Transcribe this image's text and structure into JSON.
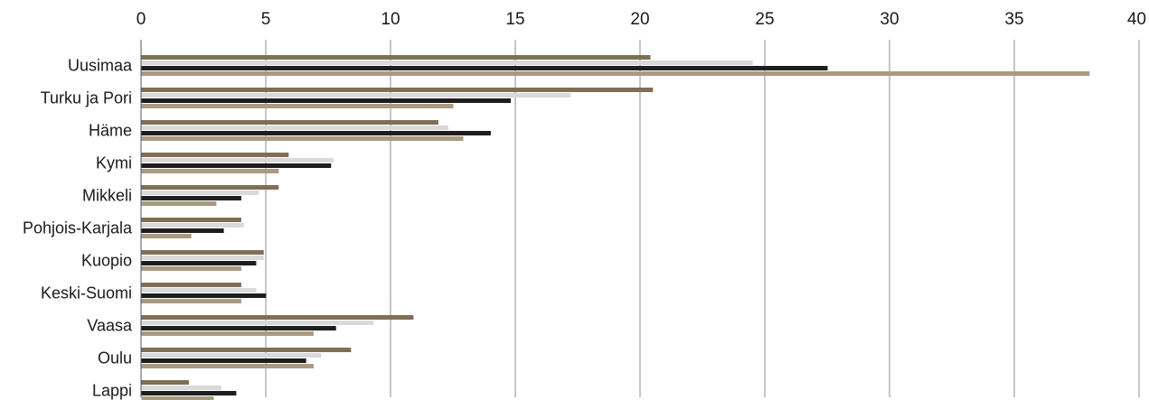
{
  "chart_data": {
    "type": "bar",
    "orientation": "horizontal",
    "categories": [
      "Uusimaa",
      "Turku ja Pori",
      "Häme",
      "Kymi",
      "Mikkeli",
      "Pohjois-Karjala",
      "Kuopio",
      "Keski-Suomi",
      "Vaasa",
      "Oulu",
      "Lappi"
    ],
    "series": [
      {
        "color": "#7f6f55",
        "values": [
          20.4,
          20.5,
          11.9,
          5.9,
          5.5,
          4.0,
          4.9,
          4.0,
          10.9,
          8.4,
          1.9
        ]
      },
      {
        "color": "#d9d9d9",
        "values": [
          24.5,
          17.2,
          12.3,
          7.7,
          4.7,
          4.1,
          4.9,
          4.6,
          9.3,
          7.2,
          3.2
        ]
      },
      {
        "color": "#1e1e1e",
        "values": [
          27.5,
          14.8,
          14.0,
          7.6,
          4.0,
          3.3,
          4.6,
          5.0,
          7.8,
          6.6,
          3.8
        ]
      },
      {
        "color": "#a89b82",
        "values": [
          38.0,
          12.5,
          12.9,
          5.5,
          3.0,
          2.0,
          4.0,
          4.0,
          6.9,
          6.9,
          2.9
        ]
      }
    ],
    "x_ticks": [
      "0",
      "5",
      "10",
      "15",
      "20",
      "25",
      "30",
      "35",
      "40"
    ],
    "xlim": [
      0,
      40
    ],
    "axis_position": "top",
    "grid": true,
    "legend": "none",
    "title": "",
    "xlabel": "",
    "ylabel": ""
  }
}
